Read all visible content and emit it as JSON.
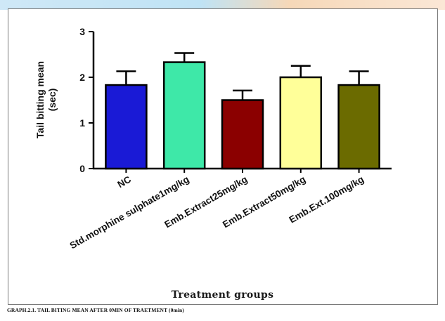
{
  "chart_data": {
    "type": "bar",
    "title": "",
    "ylabel_line1": "Tail bitting mean",
    "ylabel_line2": "(sec)",
    "xlabel": "Treatment groups",
    "ylim": [
      0,
      3
    ],
    "yticks": [
      "0",
      "1",
      "2",
      "3"
    ],
    "categories": [
      "NC",
      "Std.morphine sulphate1mg/kg",
      "Emb.Extract25mg/kg",
      "Emb.Extract50mg/kg",
      "Emb.Ext.100mg/kg"
    ],
    "values": [
      1.83,
      2.33,
      1.5,
      2.0,
      1.83
    ],
    "errors": [
      0.3,
      0.2,
      0.21,
      0.25,
      0.3
    ],
    "colors": [
      "#1a1ad6",
      "#3ee8a8",
      "#8b0000",
      "#ffff99",
      "#6b6b00"
    ],
    "grid": false,
    "legend": "none"
  },
  "caption": "GRAPH.2.1. TAIL BITING MEAN AFTER 0MIN OF TRAETMENT (0min)"
}
